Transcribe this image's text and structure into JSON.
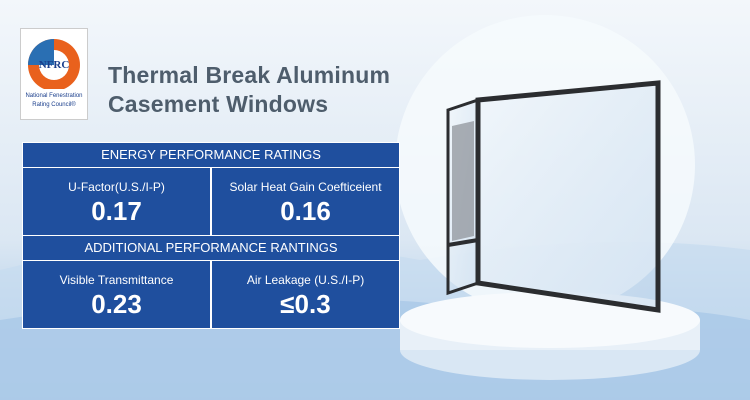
{
  "logo": {
    "acronym": "NFRC",
    "line1": "National Fenestration",
    "line2": "Rating Council®"
  },
  "title": {
    "line1": "Thermal Break Aluminum",
    "line2": "Casement Windows"
  },
  "table": {
    "sections": [
      {
        "heading": "ENERGY PERFORMANCE RATINGS",
        "cells": [
          {
            "label": "U-Factor(U.S./I-P)",
            "value": "0.17"
          },
          {
            "label": "Solar Heat Gain Coefticeient",
            "value": "0.16"
          }
        ]
      },
      {
        "heading": "ADDITIONAL PERFORMANCE RANTINGS",
        "cells": [
          {
            "label": "Visible Transmittance",
            "value": "0.23"
          },
          {
            "label": "Air Leakage (U.S./I-P)",
            "value": "≤0.3"
          }
        ]
      }
    ]
  }
}
